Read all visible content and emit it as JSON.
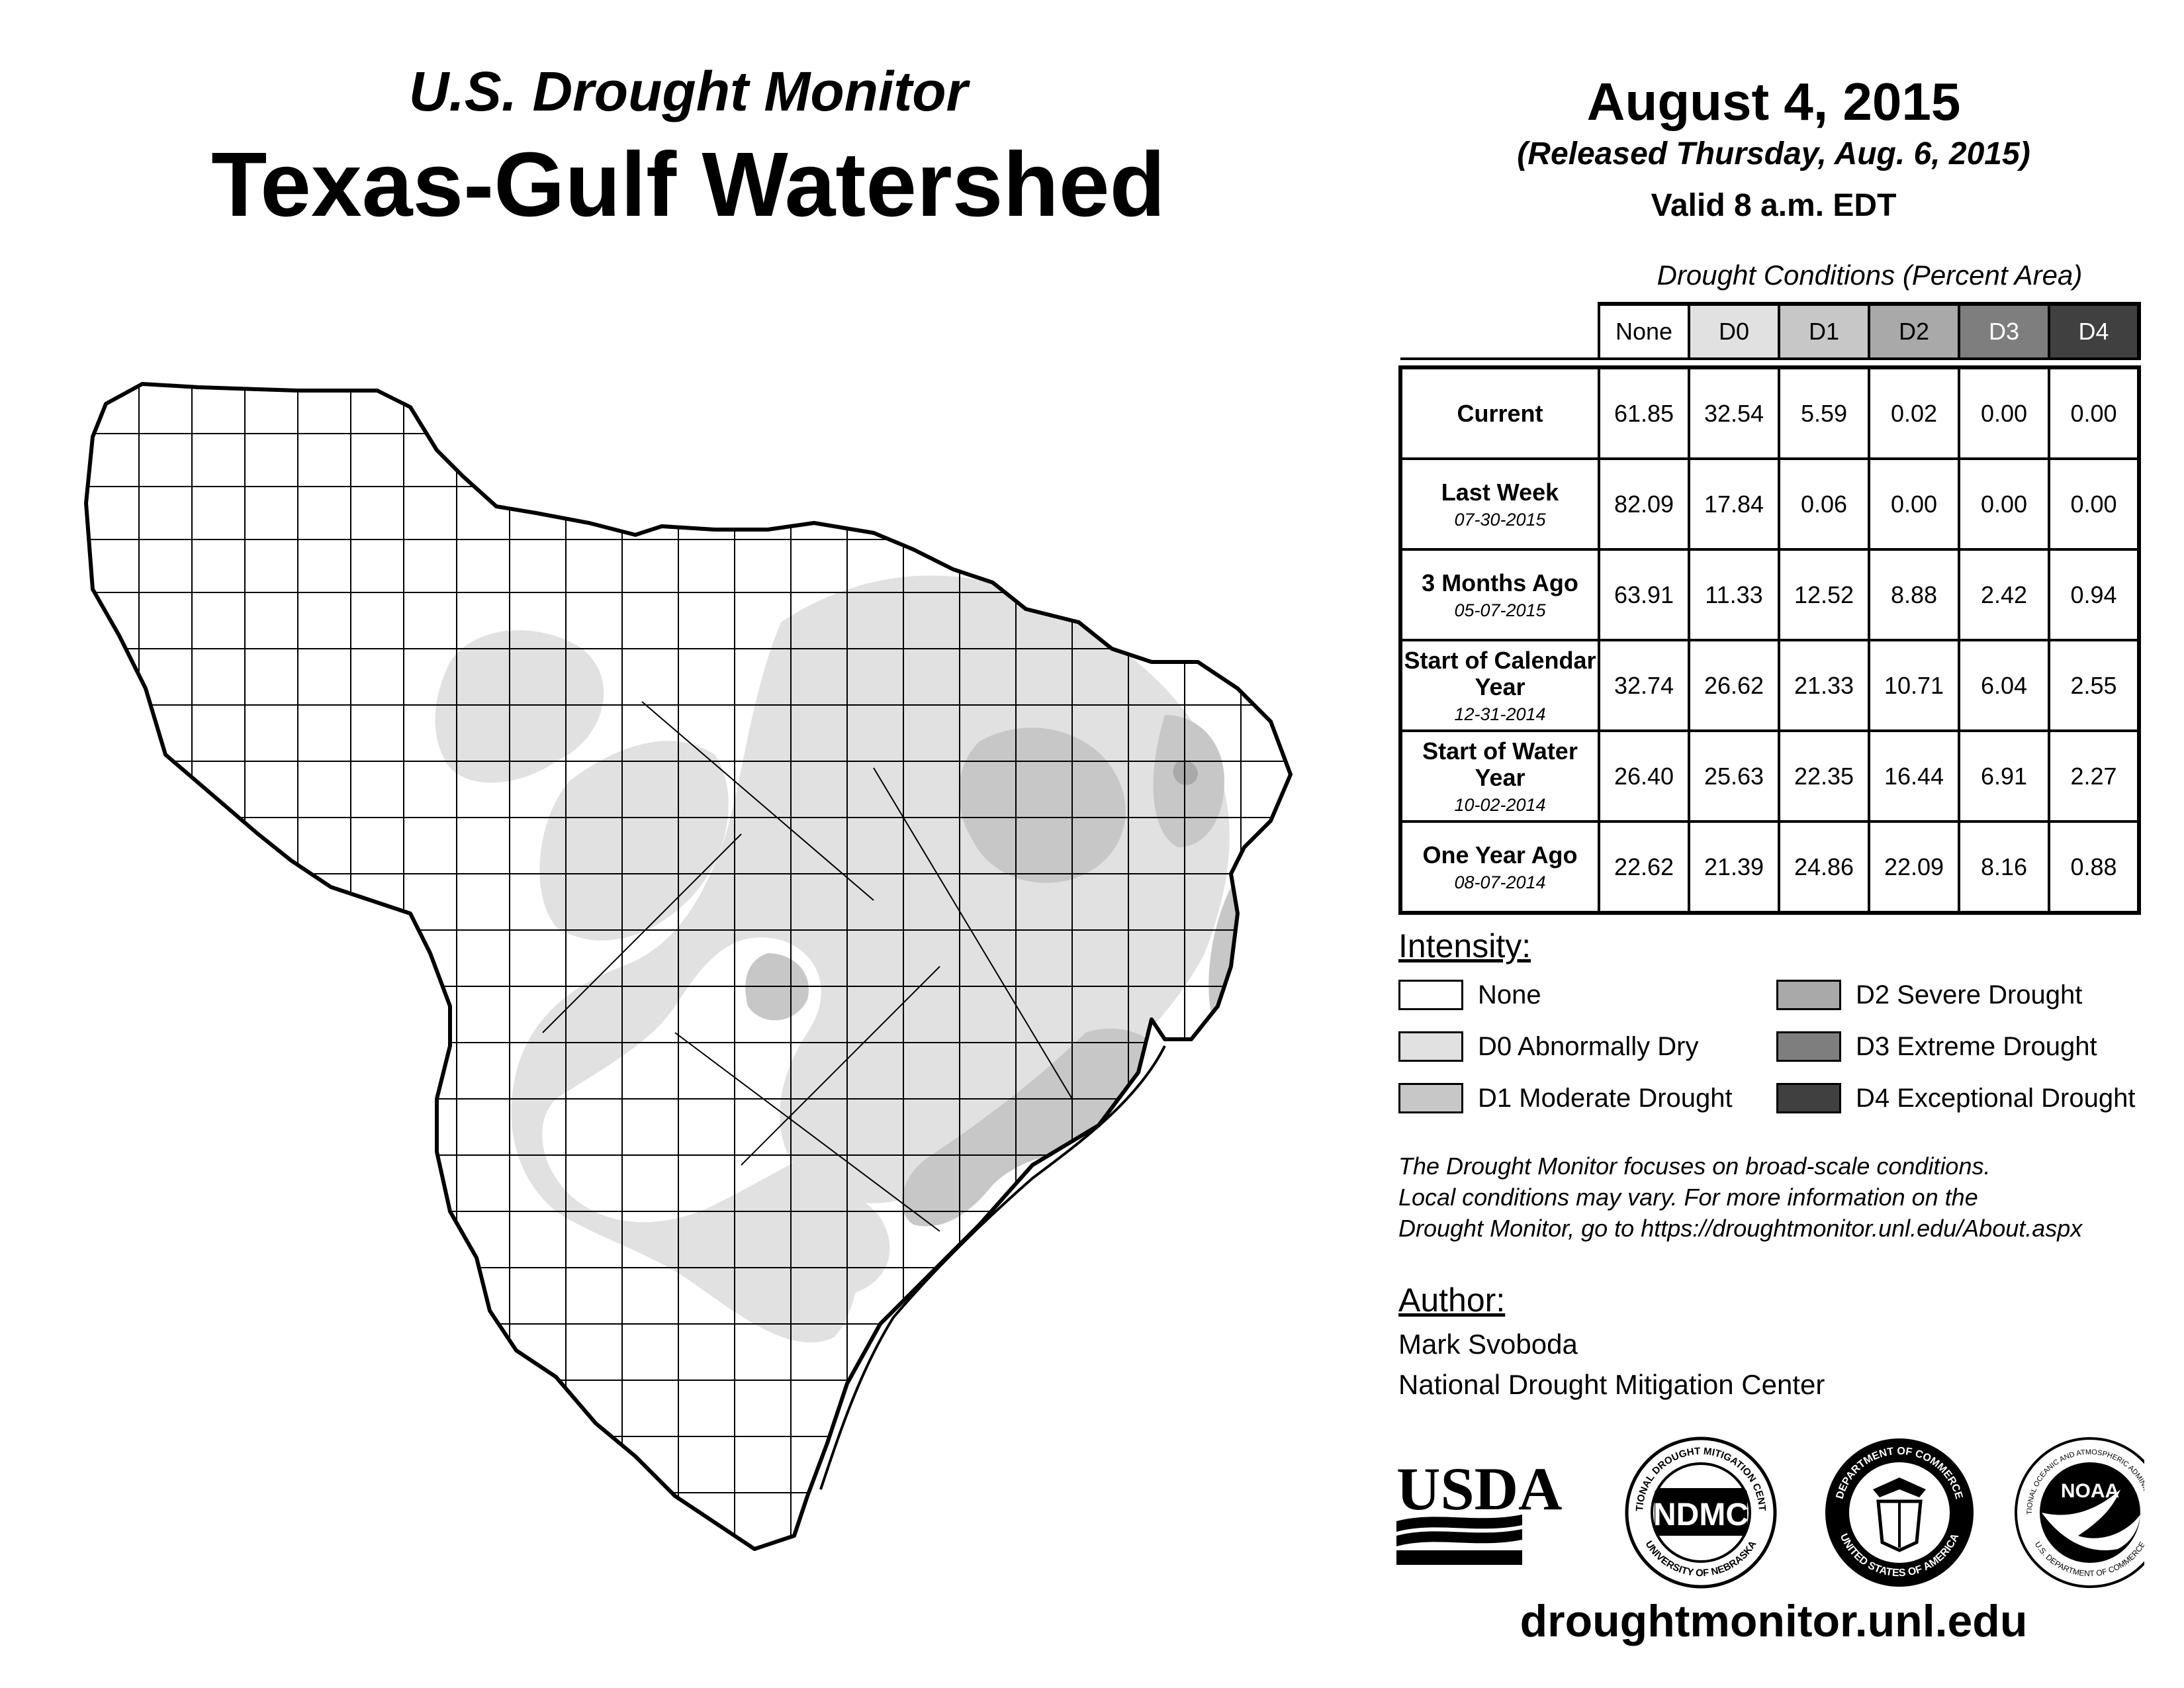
{
  "header": {
    "subtitle": "U.S. Drought Monitor",
    "title": "Texas-Gulf Watershed",
    "date": "August 4, 2015",
    "released": "(Released Thursday, Aug. 6, 2015)",
    "valid": "Valid 8 a.m. EDT"
  },
  "table": {
    "caption": "Drought Conditions (Percent Area)",
    "columns": [
      "None",
      "D0",
      "D1",
      "D2",
      "D3",
      "D4"
    ],
    "rows": [
      {
        "label": "Current",
        "sub": "",
        "values": [
          "61.85",
          "32.54",
          "5.59",
          "0.02",
          "0.00",
          "0.00"
        ]
      },
      {
        "label": "Last Week",
        "sub": "07-30-2015",
        "values": [
          "82.09",
          "17.84",
          "0.06",
          "0.00",
          "0.00",
          "0.00"
        ]
      },
      {
        "label": "3 Months Ago",
        "sub": "05-07-2015",
        "values": [
          "63.91",
          "11.33",
          "12.52",
          "8.88",
          "2.42",
          "0.94"
        ]
      },
      {
        "label": "Start of Calendar Year",
        "sub": "12-31-2014",
        "values": [
          "32.74",
          "26.62",
          "21.33",
          "10.71",
          "6.04",
          "2.55"
        ]
      },
      {
        "label": "Start of Water Year",
        "sub": "10-02-2014",
        "values": [
          "26.40",
          "25.63",
          "22.35",
          "16.44",
          "6.91",
          "2.27"
        ]
      },
      {
        "label": "One Year Ago",
        "sub": "08-07-2014",
        "values": [
          "22.62",
          "21.39",
          "24.86",
          "22.09",
          "8.16",
          "0.88"
        ]
      }
    ]
  },
  "intensity": {
    "title": "Intensity:",
    "items": [
      {
        "label": "None",
        "color": "#ffffff"
      },
      {
        "label": "D0 Abnormally Dry",
        "color": "#e1e1e1"
      },
      {
        "label": "D1 Moderate Drought",
        "color": "#c7c7c7"
      },
      {
        "label": "D2 Severe Drought",
        "color": "#a9a9a9"
      },
      {
        "label": "D3 Extreme Drought",
        "color": "#7e7e7e"
      },
      {
        "label": "D4 Exceptional Drought",
        "color": "#404040"
      }
    ],
    "header_colors": [
      "#ffffff",
      "#e1e1e1",
      "#c7c7c7",
      "#a9a9a9",
      "#7e7e7e",
      "#404040"
    ]
  },
  "note": {
    "line1": "The Drought Monitor focuses on broad-scale conditions.",
    "line2": "Local conditions may vary. For more information on the",
    "line3": "Drought Monitor, go to https://droughtmonitor.unl.edu/About.aspx"
  },
  "author": {
    "title": "Author:",
    "name": "Mark Svoboda",
    "org": "National Drought Mitigation Center"
  },
  "logos": {
    "usda": "USDA",
    "ndmc": "NDMC",
    "ndmc_ring_top": "NATIONAL DROUGHT MITIGATION CENTER",
    "ndmc_ring_bottom": "UNIVERSITY OF NEBRASKA",
    "commerce_ring_top": "DEPARTMENT OF COMMERCE",
    "commerce_ring_bottom": "UNITED STATES OF AMERICA",
    "noaa": "NOAA",
    "noaa_ring_top": "NATIONAL OCEANIC AND ATMOSPHERIC ADMINISTRATION",
    "noaa_ring_bottom": "U.S. DEPARTMENT OF COMMERCE"
  },
  "website": "droughtmonitor.unl.edu"
}
